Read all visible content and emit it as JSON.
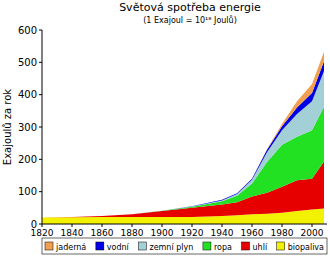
{
  "chart_data": {
    "type": "area",
    "stacked": true,
    "title": "Světová spotřeba energie",
    "subtitle": "(1 Exajoul = 10¹⁸ Joulů)",
    "y_label": "Exajoulů za rok",
    "x": [
      1820,
      1840,
      1860,
      1880,
      1900,
      1920,
      1940,
      1950,
      1960,
      1970,
      1980,
      1990,
      2000,
      2008
    ],
    "series": [
      {
        "name": "biopaliva",
        "color": "#f2f200",
        "values": [
          20,
          21,
          22,
          22,
          22,
          22,
          25,
          27,
          30,
          32,
          35,
          40,
          45,
          48
        ]
      },
      {
        "name": "uhlí",
        "color": "#e60000",
        "values": [
          0,
          1,
          3,
          8,
          18,
          28,
          35,
          40,
          55,
          65,
          80,
          95,
          95,
          145
        ]
      },
      {
        "name": "ropa",
        "color": "#22e022",
        "values": [
          0,
          0,
          0,
          0,
          1,
          3,
          10,
          20,
          40,
          95,
          130,
          135,
          150,
          170
        ]
      },
      {
        "name": "zemní plyn",
        "color": "#a3cfd6",
        "values": [
          0,
          0,
          0,
          0,
          0,
          1,
          3,
          6,
          12,
          30,
          45,
          70,
          90,
          110
        ]
      },
      {
        "name": "vodní",
        "color": "#0000e6",
        "values": [
          0,
          0,
          0,
          0,
          0,
          1,
          2,
          2,
          3,
          8,
          12,
          20,
          25,
          30
        ]
      },
      {
        "name": "jaderná",
        "color": "#f0a050",
        "values": [
          0,
          0,
          0,
          0,
          0,
          0,
          0,
          0,
          0,
          1,
          7,
          20,
          28,
          30
        ]
      }
    ],
    "xlim": [
      1820,
      2010
    ],
    "xticks": [
      1820,
      1840,
      1860,
      1880,
      1900,
      1920,
      1940,
      1960,
      1980,
      2000
    ],
    "ylim": [
      0,
      600
    ],
    "yticks": [
      0,
      100,
      200,
      300,
      400,
      500,
      600
    ],
    "grid": false,
    "legend": "bottom"
  }
}
